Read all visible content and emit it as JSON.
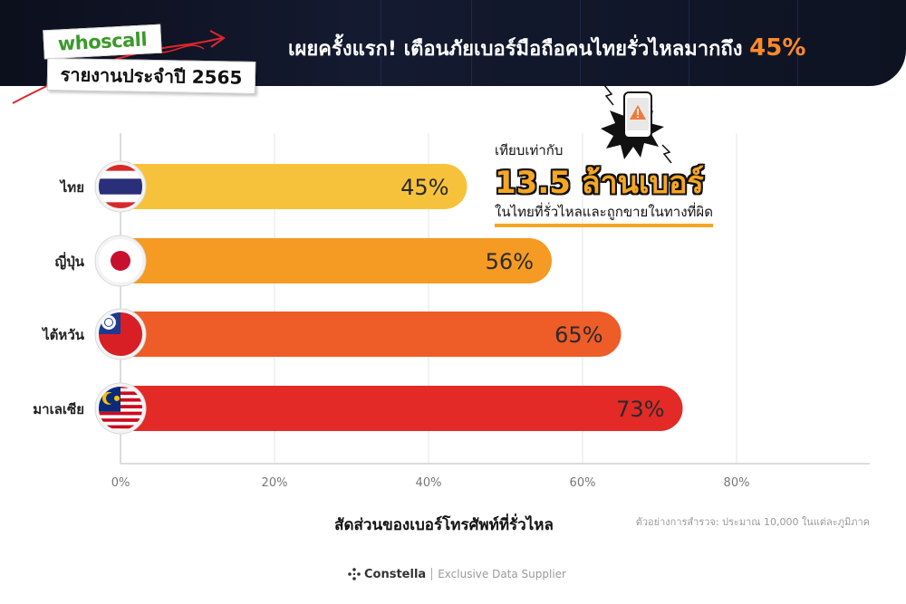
{
  "header": {
    "logo": "whoscall",
    "report_title": "รายงานประจำปี 2565",
    "headline": "เผยครั้งแรก! เตือนภัยเบอร์มือถือคนไทยรั่วไหลมากถึง",
    "headline_highlight": "45%"
  },
  "callout": {
    "prefix": "เทียบเท่ากับ",
    "big": "13.5 ล้านเบอร์",
    "sub": "ในไทยที่รั่วไหลและถูกขายในทางที่ผิด",
    "icon": "warning-phone-icon"
  },
  "chart_data": {
    "type": "bar",
    "orientation": "horizontal",
    "categories": [
      "ไทย",
      "ญี่ปุ่น",
      "ไต้หวัน",
      "มาเลเซีย"
    ],
    "values": [
      45,
      56,
      65,
      73
    ],
    "value_labels": [
      "45%",
      "56%",
      "65%",
      "73%"
    ],
    "flags": [
      "thailand-flag-icon",
      "japan-flag-icon",
      "taiwan-flag-icon",
      "malaysia-flag-icon"
    ],
    "colors": [
      "#f7c23b",
      "#f59a22",
      "#ee5c28",
      "#e32a26"
    ],
    "xlabel": "สัดส่วนของเบอร์โทรศัพท์ที่รั่วไหล",
    "xticks": [
      "0%",
      "20%",
      "40%",
      "60%",
      "80%"
    ],
    "xlim": [
      0,
      96
    ],
    "grid": true
  },
  "source_note": "ตัวอย่างการสำรวจ: ประมาณ 10,000 ในแต่ละภูมิภาค",
  "footer": {
    "brand": "Constella",
    "tagline": "Exclusive Data Supplier"
  }
}
